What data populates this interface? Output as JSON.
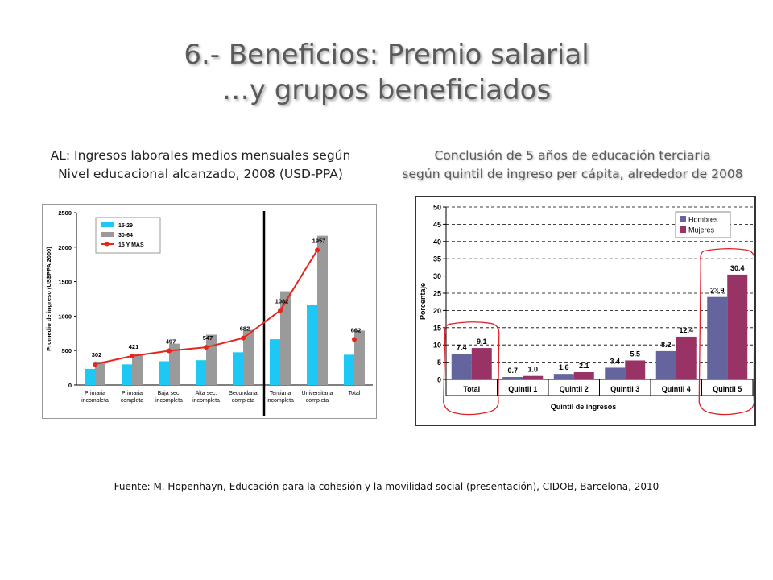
{
  "slide": {
    "title_line1": "6.- Beneficios: Premio salarial",
    "title_line2": "…y grupos beneficiados",
    "caption_left_line1": "AL: Ingresos laborales medios mensuales según",
    "caption_left_line2": "Nivel educacional alcanzado, 2008 (USD-PPA)",
    "caption_right_line1": "Conclusión de 5 años de educación terciaria",
    "caption_right_line2": "según quintil de ingreso per cápita, alrededor de 2008",
    "source": "Fuente: M. Hopenhayn, Educación para la cohesión y la movilidad social (presentación), CIDOB, Barcelona, 2010"
  },
  "chart_data": [
    {
      "type": "bar",
      "ylabel": "Promedio de ingreso (US$PPA 2000)",
      "ylim": [
        0,
        2500
      ],
      "yticks": [
        0,
        500,
        1000,
        1500,
        2000,
        2500
      ],
      "categories": [
        [
          "Primaria",
          "incompleta"
        ],
        [
          "Primaria",
          "completa"
        ],
        [
          "Baja sec.",
          "incompleta"
        ],
        [
          "Alta sec.",
          "incompleta"
        ],
        [
          "Secundaria",
          "completa"
        ],
        [
          "Terciaria",
          "incompleta"
        ],
        [
          "Universitaria",
          "completa"
        ],
        [
          "Total"
        ]
      ],
      "series": [
        {
          "name": "15-29",
          "kind": "bar",
          "color": "#1ec8f5",
          "values": [
            235,
            300,
            345,
            360,
            475,
            665,
            1160,
            440
          ]
        },
        {
          "name": "30-64",
          "kind": "bar",
          "color": "#9a9a9a",
          "values": [
            340,
            455,
            600,
            730,
            800,
            1360,
            2165,
            790
          ]
        },
        {
          "name": "15 Y MAS",
          "kind": "line",
          "color": "#e8241c",
          "values": [
            302,
            421,
            497,
            547,
            682,
            1082,
            1957,
            662
          ]
        }
      ],
      "legend": "top-left",
      "grid": false
    },
    {
      "type": "bar",
      "xlabel": "Quintil de ingresos",
      "ylabel": "Porcentaje",
      "ylim": [
        0,
        50
      ],
      "yticks": [
        0,
        5,
        10,
        15,
        20,
        25,
        30,
        35,
        40,
        45,
        50
      ],
      "categories": [
        "Total",
        "Quintil 1",
        "Quintil 2",
        "Quintil 3",
        "Quintil 4",
        "Quintil 5"
      ],
      "series": [
        {
          "name": "Hombres",
          "color": "#64649e",
          "values": [
            7.4,
            0.7,
            1.6,
            3.4,
            8.2,
            23.9
          ],
          "labels": [
            "7.4",
            "0.7",
            "1.6",
            "3.4",
            "8.2",
            "23.9"
          ]
        },
        {
          "name": "Mujeres",
          "color": "#993366",
          "values": [
            9.1,
            1.0,
            2.1,
            5.5,
            12.4,
            30.4
          ],
          "labels": [
            "9.1",
            "1.0",
            "2.1",
            "5.5",
            "12.4",
            "30.4"
          ]
        }
      ],
      "legend": "top-right",
      "grid": true,
      "circled_categories": [
        "Total",
        "Quintil 5"
      ]
    }
  ]
}
